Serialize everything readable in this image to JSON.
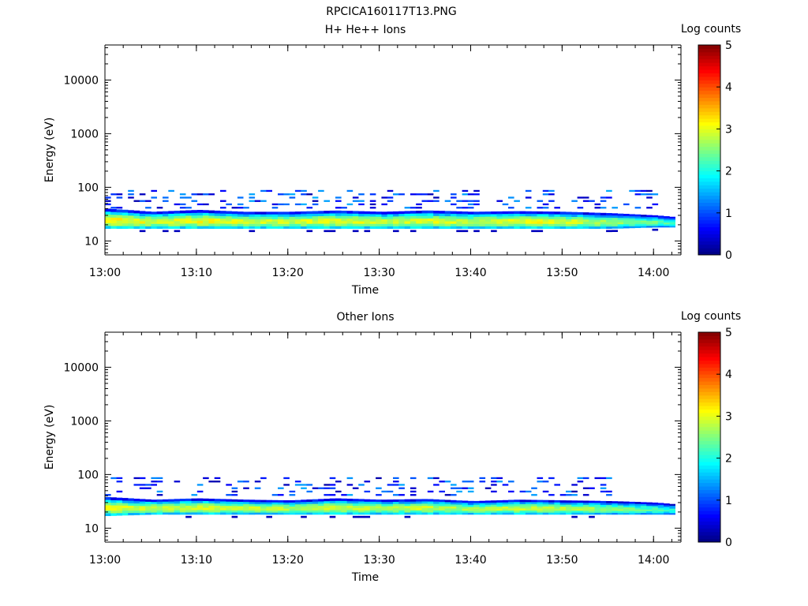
{
  "figure_title": "RPCICA160117T13.PNG",
  "chart_data": [
    {
      "type": "heatmap",
      "title": "H+ He++ Ions",
      "xlabel": "Time",
      "ylabel": "Energy (eV)",
      "x_ticks": [
        "13:00",
        "13:10",
        "13:20",
        "13:30",
        "13:40",
        "13:50",
        "14:00"
      ],
      "x_range_minutes": [
        0,
        63
      ],
      "y_ticks": [
        "10",
        "100",
        "1000",
        "10000"
      ],
      "y_range_eV": [
        5.5,
        45000
      ],
      "y_scale": "log",
      "colorbar": {
        "label": "Log counts",
        "ticks": [
          "0",
          "1",
          "2",
          "3",
          "4",
          "5"
        ],
        "range": [
          0,
          5
        ],
        "colormap": "jet"
      },
      "main_band": [
        {
          "time": "13:00",
          "energy_low_eV": 17,
          "energy_high_eV": 40,
          "peak_log_counts": 3.2
        },
        {
          "time": "13:05",
          "energy_low_eV": 17,
          "energy_high_eV": 35,
          "peak_log_counts": 3.0
        },
        {
          "time": "13:10",
          "energy_low_eV": 17,
          "energy_high_eV": 38,
          "peak_log_counts": 3.1
        },
        {
          "time": "13:15",
          "energy_low_eV": 17,
          "energy_high_eV": 35,
          "peak_log_counts": 3.0
        },
        {
          "time": "13:20",
          "energy_low_eV": 17,
          "energy_high_eV": 35,
          "peak_log_counts": 2.9
        },
        {
          "time": "13:25",
          "energy_low_eV": 17,
          "energy_high_eV": 37,
          "peak_log_counts": 3.1
        },
        {
          "time": "13:30",
          "energy_low_eV": 17,
          "energy_high_eV": 35,
          "peak_log_counts": 2.9
        },
        {
          "time": "13:35",
          "energy_low_eV": 17,
          "energy_high_eV": 37,
          "peak_log_counts": 3.0
        },
        {
          "time": "13:40",
          "energy_low_eV": 17,
          "energy_high_eV": 35,
          "peak_log_counts": 2.9
        },
        {
          "time": "13:45",
          "energy_low_eV": 17,
          "energy_high_eV": 36,
          "peak_log_counts": 3.1
        },
        {
          "time": "13:50",
          "energy_low_eV": 17,
          "energy_high_eV": 35,
          "peak_log_counts": 3.0
        },
        {
          "time": "13:55",
          "energy_low_eV": 17,
          "energy_high_eV": 33,
          "peak_log_counts": 2.7
        },
        {
          "time": "14:00",
          "energy_low_eV": 18,
          "energy_high_eV": 30,
          "peak_log_counts": 2.4
        },
        {
          "time": "14:02",
          "energy_low_eV": 18,
          "energy_high_eV": 28,
          "peak_log_counts": 2.2
        }
      ],
      "sparse_counts_above_band_eV": [
        40,
        95
      ],
      "sparse_counts_time_span": [
        "13:00",
        "14:00"
      ]
    },
    {
      "type": "heatmap",
      "title": "Other Ions",
      "xlabel": "Time",
      "ylabel": "Energy (eV)",
      "x_ticks": [
        "13:00",
        "13:10",
        "13:20",
        "13:30",
        "13:40",
        "13:50",
        "14:00"
      ],
      "x_range_minutes": [
        0,
        63
      ],
      "y_ticks": [
        "10",
        "100",
        "1000",
        "10000"
      ],
      "y_range_eV": [
        5.5,
        45000
      ],
      "y_scale": "log",
      "colorbar": {
        "label": "Log counts",
        "ticks": [
          "0",
          "1",
          "2",
          "3",
          "4",
          "5"
        ],
        "range": [
          0,
          5
        ],
        "colormap": "jet"
      },
      "main_band": [
        {
          "time": "13:00",
          "energy_low_eV": 17,
          "energy_high_eV": 38,
          "peak_log_counts": 3.0
        },
        {
          "time": "13:05",
          "energy_low_eV": 18,
          "energy_high_eV": 34,
          "peak_log_counts": 2.9
        },
        {
          "time": "13:10",
          "energy_low_eV": 18,
          "energy_high_eV": 36,
          "peak_log_counts": 3.0
        },
        {
          "time": "13:15",
          "energy_low_eV": 18,
          "energy_high_eV": 34,
          "peak_log_counts": 2.9
        },
        {
          "time": "13:20",
          "energy_low_eV": 18,
          "energy_high_eV": 33,
          "peak_log_counts": 2.8
        },
        {
          "time": "13:25",
          "energy_low_eV": 18,
          "energy_high_eV": 36,
          "peak_log_counts": 3.0
        },
        {
          "time": "13:30",
          "energy_low_eV": 18,
          "energy_high_eV": 34,
          "peak_log_counts": 2.8
        },
        {
          "time": "13:35",
          "energy_low_eV": 18,
          "energy_high_eV": 35,
          "peak_log_counts": 2.9
        },
        {
          "time": "13:40",
          "energy_low_eV": 18,
          "energy_high_eV": 32,
          "peak_log_counts": 2.7
        },
        {
          "time": "13:45",
          "energy_low_eV": 18,
          "energy_high_eV": 34,
          "peak_log_counts": 2.9
        },
        {
          "time": "13:50",
          "energy_low_eV": 18,
          "energy_high_eV": 33,
          "peak_log_counts": 2.8
        },
        {
          "time": "13:55",
          "energy_low_eV": 18,
          "energy_high_eV": 32,
          "peak_log_counts": 2.6
        },
        {
          "time": "14:00",
          "energy_low_eV": 18,
          "energy_high_eV": 30,
          "peak_log_counts": 2.3
        },
        {
          "time": "14:02",
          "energy_low_eV": 18,
          "energy_high_eV": 28,
          "peak_log_counts": 2.1
        }
      ],
      "sparse_counts_above_band_eV": [
        40,
        95
      ],
      "sparse_counts_time_span": [
        "13:00",
        "13:55"
      ]
    }
  ]
}
